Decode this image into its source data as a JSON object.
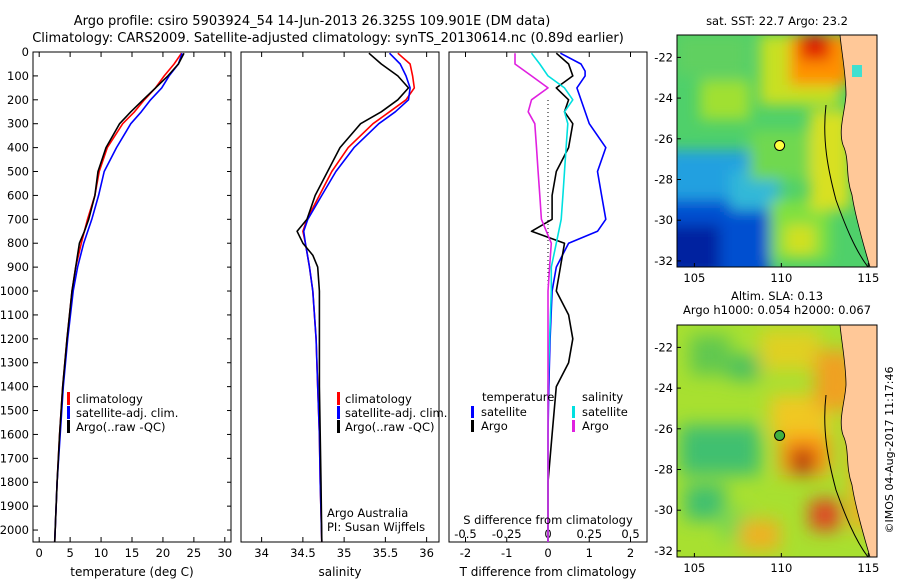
{
  "header": {
    "line1": "Argo profile: csiro 5903924_54 14-Jun-2013 26.325S 109.901E (DM data)",
    "line2": "Climatology: CARS2009. Satellite-adjusted climatology: synTS_20130614.nc (0.89d earlier)"
  },
  "colors": {
    "clim": "#ff0000",
    "sat": "#0000ff",
    "argo": "#000000",
    "sal_sat": "#00e0e0",
    "sal_argo": "#e020e0"
  },
  "chart_data": [
    {
      "type": "line",
      "panel": "temperature",
      "xlabel": "temperature (deg C)",
      "ylabel": "",
      "xlim": [
        -1,
        31
      ],
      "ylim": [
        2050,
        0
      ],
      "xticks": [
        0,
        5,
        10,
        15,
        20,
        25,
        30
      ],
      "yticks": [
        0,
        100,
        200,
        300,
        400,
        500,
        600,
        700,
        800,
        900,
        1000,
        1100,
        1200,
        1300,
        1400,
        1500,
        1600,
        1700,
        1800,
        1900,
        2000
      ],
      "legend": [
        "climatology",
        "satellite-adj. clim.",
        "Argo(..raw -QC)"
      ],
      "series": [
        {
          "name": "climatology",
          "color": "#ff0000",
          "depth": [
            5,
            50,
            100,
            150,
            200,
            250,
            300,
            400,
            500,
            600,
            700,
            800,
            900,
            1000,
            1200,
            1400,
            1600,
            1800,
            2050
          ],
          "values": [
            23,
            21.8,
            20.2,
            18.8,
            17,
            15.4,
            13.5,
            11,
            9.7,
            9,
            7.8,
            6.8,
            5.9,
            5.3,
            4.5,
            3.8,
            3.3,
            2.9,
            2.5
          ]
        },
        {
          "name": "satellite-adj. clim.",
          "color": "#0000ff",
          "depth": [
            5,
            50,
            100,
            150,
            200,
            250,
            300,
            400,
            500,
            600,
            700,
            800,
            900,
            1000,
            1200,
            1400,
            1600,
            1800,
            2050
          ],
          "values": [
            23.1,
            22.5,
            21,
            19.8,
            18,
            16.5,
            14.8,
            12.5,
            10.5,
            9.6,
            8.5,
            7.2,
            6.2,
            5.5,
            4.6,
            3.9,
            3.4,
            2.9,
            2.5
          ]
        },
        {
          "name": "Argo(..raw -QC)",
          "color": "#000000",
          "depth": [
            5,
            50,
            100,
            150,
            200,
            250,
            300,
            400,
            500,
            600,
            700,
            750,
            800,
            900,
            1000,
            1200,
            1400,
            1600,
            1800,
            2050
          ],
          "values": [
            23.4,
            22.5,
            20.8,
            18.8,
            16.8,
            14.8,
            13,
            10.8,
            9.5,
            9,
            8,
            7.3,
            6.5,
            5.9,
            5.3,
            4.5,
            3.8,
            3.3,
            2.9,
            2.5
          ]
        }
      ]
    },
    {
      "type": "line",
      "panel": "salinity",
      "xlabel": "salinity",
      "ylabel": "",
      "xlim": [
        33.75,
        36.15
      ],
      "ylim": [
        2050,
        0
      ],
      "xticks": [
        34,
        34.5,
        35,
        35.5,
        36
      ],
      "legend": [
        "climatology",
        "satellite-adj. clim.",
        "Argo(..raw -QC)"
      ],
      "annotation": [
        "Argo Australia",
        "PI: Susan Wijffels"
      ],
      "series": [
        {
          "name": "climatology",
          "color": "#ff0000",
          "depth": [
            5,
            50,
            100,
            150,
            200,
            250,
            300,
            400,
            500,
            600,
            700,
            750,
            800,
            900,
            1000,
            1200,
            1400,
            1600,
            1800,
            2050
          ],
          "values": [
            35.65,
            35.8,
            35.83,
            35.85,
            35.75,
            35.55,
            35.35,
            35.05,
            34.85,
            34.7,
            34.55,
            34.5,
            34.53,
            34.58,
            34.62,
            34.66,
            34.68,
            34.7,
            34.71,
            34.73
          ]
        },
        {
          "name": "satellite-adj. clim.",
          "color": "#0000ff",
          "depth": [
            5,
            50,
            100,
            150,
            200,
            250,
            300,
            400,
            500,
            600,
            700,
            750,
            800,
            900,
            1000,
            1200,
            1400,
            1600,
            1800,
            2050
          ],
          "values": [
            35.55,
            35.68,
            35.75,
            35.8,
            35.78,
            35.62,
            35.42,
            35.12,
            34.9,
            34.73,
            34.56,
            34.51,
            34.53,
            34.58,
            34.62,
            34.66,
            34.68,
            34.7,
            34.71,
            34.73
          ]
        },
        {
          "name": "Argo(..raw -QC)",
          "color": "#000000",
          "depth": [
            5,
            50,
            100,
            150,
            200,
            250,
            300,
            400,
            500,
            600,
            700,
            750,
            800,
            850,
            900,
            1000,
            1200,
            1400,
            1600,
            1800,
            2050
          ],
          "values": [
            35.3,
            35.45,
            35.65,
            35.78,
            35.65,
            35.45,
            35.2,
            34.95,
            34.8,
            34.65,
            34.55,
            34.43,
            34.5,
            34.62,
            34.68,
            34.7,
            34.7,
            34.7,
            34.71,
            34.72,
            34.73
          ]
        }
      ]
    },
    {
      "type": "line",
      "panel": "difference",
      "xlabel": "T difference from climatology",
      "x2label": "S difference from climatology",
      "xlim": [
        -2.4,
        2.4
      ],
      "ylim": [
        2050,
        0
      ],
      "xticks": [
        "-2",
        "-1",
        "0",
        "1",
        "2"
      ],
      "x2ticks": [
        "-0.5",
        "-0.25",
        "0",
        "0.25",
        "0.5"
      ],
      "legend_temperature": {
        "title": "temperature",
        "items": [
          "satellite",
          "Argo"
        ]
      },
      "legend_salinity": {
        "title": "salinity",
        "items": [
          "satellite",
          "Argo"
        ]
      },
      "series": [
        {
          "name": "T satellite",
          "color": "#0000ff",
          "depth": [
            5,
            50,
            80,
            100,
            150,
            200,
            300,
            400,
            500,
            600,
            700,
            750,
            800,
            900,
            1000,
            1200,
            1400,
            1600,
            1800,
            2050
          ],
          "values": [
            0.3,
            0.8,
            0.9,
            0.9,
            0.7,
            0.8,
            1,
            1.4,
            1.2,
            1.3,
            1.4,
            1.2,
            0.5,
            0.2,
            0.1,
            0.05,
            0.02,
            0.0,
            0.0,
            0.0
          ]
        },
        {
          "name": "T Argo",
          "color": "#000000",
          "depth": [
            5,
            50,
            100,
            150,
            200,
            250,
            300,
            400,
            500,
            600,
            700,
            750,
            800,
            900,
            1000,
            1100,
            1200,
            1300,
            1400,
            1600,
            1800,
            2050
          ],
          "values": [
            0.2,
            0.5,
            0.6,
            0.2,
            0.5,
            0.4,
            0.6,
            0.5,
            0.2,
            0.1,
            0.1,
            -0.4,
            0.4,
            0.3,
            0.2,
            0.5,
            0.6,
            0.5,
            0.2,
            0.1,
            0.0,
            0.0
          ]
        },
        {
          "name": "S satellite",
          "color": "#00e0e0",
          "depth": [
            5,
            50,
            100,
            150,
            200,
            250,
            300,
            400,
            500,
            600,
            700,
            800,
            900,
            1000,
            1200,
            1400,
            1600,
            1800,
            2050
          ],
          "values": [
            -0.1,
            -0.05,
            0.0,
            0.1,
            0.15,
            0.1,
            0.12,
            0.11,
            0.1,
            0.09,
            0.08,
            0.05,
            0.02,
            0.02,
            0.01,
            0.0,
            0.0,
            0.0,
            0.0
          ]
        },
        {
          "name": "S Argo",
          "color": "#e020e0",
          "depth": [
            5,
            50,
            100,
            150,
            200,
            250,
            300,
            400,
            500,
            600,
            700,
            800,
            900,
            1000,
            1200,
            1400,
            1600,
            1800,
            2050
          ],
          "values": [
            -0.2,
            -0.2,
            -0.1,
            0.0,
            -0.1,
            -0.12,
            -0.08,
            -0.07,
            -0.06,
            -0.05,
            -0.04,
            0.02,
            0.01,
            0.0,
            0.0,
            0.0,
            0.0,
            0.0,
            0.0
          ]
        }
      ]
    },
    {
      "type": "heatmap",
      "panel": "sst-map",
      "title": "sat. SST: 22.7  Argo: 23.2",
      "xlim": [
        104,
        115.5
      ],
      "ylim": [
        -32.3,
        -20.9
      ],
      "xticks": [
        "105",
        "110",
        "115"
      ],
      "yticks": [
        "-22",
        "-24",
        "-26",
        "-28",
        "-30",
        "-32"
      ],
      "marker": {
        "lon": 109.9,
        "lat": -26.33
      }
    },
    {
      "type": "heatmap",
      "panel": "sla-map",
      "title": [
        "Altim. SLA: 0.13",
        "Argo h1000: 0.054 h2000: 0.067"
      ],
      "xlim": [
        104,
        115.5
      ],
      "ylim": [
        -32.3,
        -20.9
      ],
      "xticks": [
        "105",
        "110",
        "115"
      ],
      "yticks": [
        "-22",
        "-24",
        "-26",
        "-28",
        "-30",
        "-32"
      ],
      "marker": {
        "lon": 109.9,
        "lat": -26.33
      }
    }
  ],
  "footer": {
    "stamp": "©IMOS 04-Aug-2017 11:17:46"
  }
}
